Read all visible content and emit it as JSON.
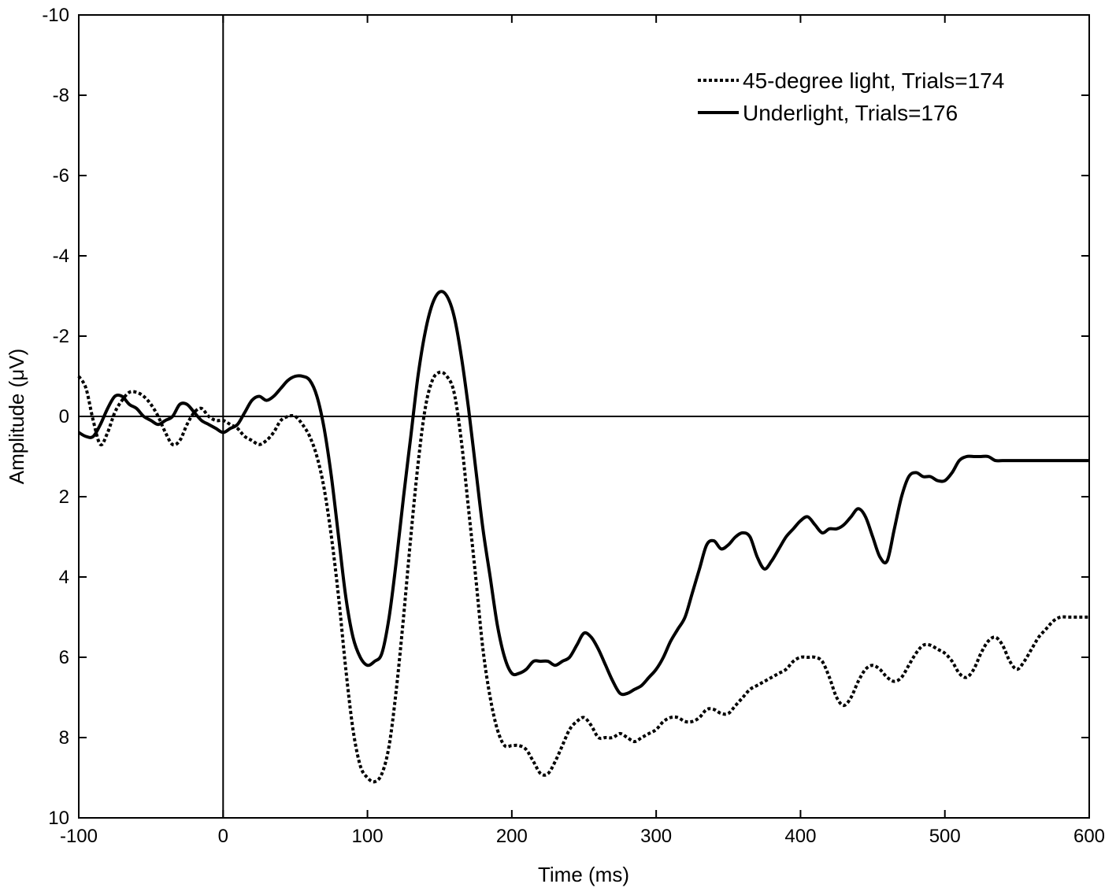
{
  "chart_data": {
    "type": "line",
    "title": "",
    "xlabel": "Time (ms)",
    "ylabel": "Amplitude (μV)",
    "xlim": [
      -100,
      600
    ],
    "ylim": [
      -10,
      10
    ],
    "y_inverted": true,
    "xticks": [
      -100,
      0,
      100,
      200,
      300,
      400,
      500,
      600
    ],
    "yticks": [
      -10,
      -8,
      -6,
      -4,
      -2,
      0,
      2,
      4,
      6,
      8,
      10
    ],
    "grid": false,
    "zero_lines": true,
    "legend_position": "top-right",
    "series": [
      {
        "name": "45-degree light, Trials=174",
        "style": "dotted",
        "color": "#000000",
        "points": [
          [
            -100,
            -1.0
          ],
          [
            -95,
            -0.7
          ],
          [
            -90,
            0.1
          ],
          [
            -85,
            0.7
          ],
          [
            -80,
            0.4
          ],
          [
            -75,
            -0.1
          ],
          [
            -70,
            -0.4
          ],
          [
            -65,
            -0.6
          ],
          [
            -60,
            -0.6
          ],
          [
            -55,
            -0.5
          ],
          [
            -50,
            -0.3
          ],
          [
            -45,
            0.0
          ],
          [
            -40,
            0.4
          ],
          [
            -35,
            0.7
          ],
          [
            -30,
            0.6
          ],
          [
            -25,
            0.2
          ],
          [
            -20,
            -0.1
          ],
          [
            -15,
            -0.2
          ],
          [
            -10,
            0.0
          ],
          [
            -5,
            0.1
          ],
          [
            0,
            0.1
          ],
          [
            5,
            0.2
          ],
          [
            10,
            0.3
          ],
          [
            15,
            0.5
          ],
          [
            20,
            0.6
          ],
          [
            25,
            0.7
          ],
          [
            30,
            0.6
          ],
          [
            35,
            0.4
          ],
          [
            40,
            0.1
          ],
          [
            45,
            0.0
          ],
          [
            50,
            0.0
          ],
          [
            55,
            0.2
          ],
          [
            60,
            0.5
          ],
          [
            65,
            1.0
          ],
          [
            70,
            1.8
          ],
          [
            75,
            3.0
          ],
          [
            80,
            4.5
          ],
          [
            85,
            6.3
          ],
          [
            90,
            7.8
          ],
          [
            95,
            8.7
          ],
          [
            100,
            9.0
          ],
          [
            105,
            9.1
          ],
          [
            110,
            8.9
          ],
          [
            115,
            8.2
          ],
          [
            120,
            6.8
          ],
          [
            125,
            5.0
          ],
          [
            130,
            3.0
          ],
          [
            135,
            1.2
          ],
          [
            140,
            -0.2
          ],
          [
            145,
            -0.9
          ],
          [
            150,
            -1.1
          ],
          [
            155,
            -1.0
          ],
          [
            160,
            -0.6
          ],
          [
            165,
            0.6
          ],
          [
            170,
            2.3
          ],
          [
            175,
            4.0
          ],
          [
            180,
            5.8
          ],
          [
            185,
            7.0
          ],
          [
            190,
            7.8
          ],
          [
            195,
            8.2
          ],
          [
            200,
            8.2
          ],
          [
            205,
            8.2
          ],
          [
            210,
            8.3
          ],
          [
            215,
            8.6
          ],
          [
            220,
            8.9
          ],
          [
            225,
            8.9
          ],
          [
            230,
            8.6
          ],
          [
            235,
            8.2
          ],
          [
            240,
            7.8
          ],
          [
            245,
            7.6
          ],
          [
            250,
            7.5
          ],
          [
            255,
            7.7
          ],
          [
            260,
            8.0
          ],
          [
            265,
            8.0
          ],
          [
            270,
            8.0
          ],
          [
            275,
            7.9
          ],
          [
            280,
            8.0
          ],
          [
            285,
            8.1
          ],
          [
            290,
            8.0
          ],
          [
            295,
            7.9
          ],
          [
            300,
            7.8
          ],
          [
            305,
            7.6
          ],
          [
            310,
            7.5
          ],
          [
            315,
            7.5
          ],
          [
            320,
            7.6
          ],
          [
            325,
            7.6
          ],
          [
            330,
            7.5
          ],
          [
            335,
            7.3
          ],
          [
            340,
            7.3
          ],
          [
            345,
            7.4
          ],
          [
            350,
            7.4
          ],
          [
            355,
            7.2
          ],
          [
            360,
            7.0
          ],
          [
            365,
            6.8
          ],
          [
            370,
            6.7
          ],
          [
            375,
            6.6
          ],
          [
            380,
            6.5
          ],
          [
            385,
            6.4
          ],
          [
            390,
            6.3
          ],
          [
            395,
            6.1
          ],
          [
            400,
            6.0
          ],
          [
            405,
            6.0
          ],
          [
            410,
            6.0
          ],
          [
            415,
            6.1
          ],
          [
            420,
            6.5
          ],
          [
            425,
            7.0
          ],
          [
            430,
            7.2
          ],
          [
            435,
            7.0
          ],
          [
            440,
            6.6
          ],
          [
            445,
            6.3
          ],
          [
            450,
            6.2
          ],
          [
            455,
            6.3
          ],
          [
            460,
            6.5
          ],
          [
            465,
            6.6
          ],
          [
            470,
            6.5
          ],
          [
            475,
            6.2
          ],
          [
            480,
            5.9
          ],
          [
            485,
            5.7
          ],
          [
            490,
            5.7
          ],
          [
            495,
            5.8
          ],
          [
            500,
            5.9
          ],
          [
            505,
            6.1
          ],
          [
            510,
            6.4
          ],
          [
            515,
            6.5
          ],
          [
            520,
            6.3
          ],
          [
            525,
            5.9
          ],
          [
            530,
            5.6
          ],
          [
            535,
            5.5
          ],
          [
            540,
            5.7
          ],
          [
            545,
            6.1
          ],
          [
            550,
            6.3
          ],
          [
            555,
            6.1
          ],
          [
            560,
            5.8
          ],
          [
            565,
            5.5
          ],
          [
            570,
            5.3
          ],
          [
            575,
            5.1
          ],
          [
            580,
            5.0
          ],
          [
            585,
            5.0
          ],
          [
            590,
            5.0
          ],
          [
            595,
            5.0
          ],
          [
            600,
            5.0
          ]
        ]
      },
      {
        "name": "Underlight, Trials=176",
        "style": "solid",
        "color": "#000000",
        "points": [
          [
            -100,
            0.4
          ],
          [
            -95,
            0.5
          ],
          [
            -90,
            0.5
          ],
          [
            -85,
            0.2
          ],
          [
            -80,
            -0.2
          ],
          [
            -75,
            -0.5
          ],
          [
            -70,
            -0.5
          ],
          [
            -65,
            -0.3
          ],
          [
            -60,
            -0.2
          ],
          [
            -55,
            0.0
          ],
          [
            -50,
            0.1
          ],
          [
            -45,
            0.2
          ],
          [
            -40,
            0.1
          ],
          [
            -35,
            0.0
          ],
          [
            -30,
            -0.3
          ],
          [
            -25,
            -0.3
          ],
          [
            -20,
            -0.1
          ],
          [
            -15,
            0.1
          ],
          [
            -10,
            0.2
          ],
          [
            -5,
            0.3
          ],
          [
            0,
            0.4
          ],
          [
            5,
            0.3
          ],
          [
            10,
            0.2
          ],
          [
            15,
            -0.1
          ],
          [
            20,
            -0.4
          ],
          [
            25,
            -0.5
          ],
          [
            30,
            -0.4
          ],
          [
            35,
            -0.5
          ],
          [
            40,
            -0.7
          ],
          [
            45,
            -0.9
          ],
          [
            50,
            -1.0
          ],
          [
            55,
            -1.0
          ],
          [
            60,
            -0.9
          ],
          [
            65,
            -0.5
          ],
          [
            70,
            0.3
          ],
          [
            75,
            1.5
          ],
          [
            80,
            3.0
          ],
          [
            85,
            4.5
          ],
          [
            90,
            5.5
          ],
          [
            95,
            6.0
          ],
          [
            100,
            6.2
          ],
          [
            105,
            6.1
          ],
          [
            110,
            5.9
          ],
          [
            115,
            5.0
          ],
          [
            120,
            3.6
          ],
          [
            125,
            2.0
          ],
          [
            130,
            0.5
          ],
          [
            135,
            -1.0
          ],
          [
            140,
            -2.1
          ],
          [
            145,
            -2.8
          ],
          [
            150,
            -3.1
          ],
          [
            155,
            -3.0
          ],
          [
            160,
            -2.5
          ],
          [
            165,
            -1.5
          ],
          [
            170,
            -0.2
          ],
          [
            175,
            1.3
          ],
          [
            180,
            2.8
          ],
          [
            185,
            4.0
          ],
          [
            190,
            5.2
          ],
          [
            195,
            6.0
          ],
          [
            200,
            6.4
          ],
          [
            205,
            6.4
          ],
          [
            210,
            6.3
          ],
          [
            215,
            6.1
          ],
          [
            220,
            6.1
          ],
          [
            225,
            6.1
          ],
          [
            230,
            6.2
          ],
          [
            235,
            6.1
          ],
          [
            240,
            6.0
          ],
          [
            245,
            5.7
          ],
          [
            250,
            5.4
          ],
          [
            255,
            5.5
          ],
          [
            260,
            5.8
          ],
          [
            265,
            6.2
          ],
          [
            270,
            6.6
          ],
          [
            275,
            6.9
          ],
          [
            280,
            6.9
          ],
          [
            285,
            6.8
          ],
          [
            290,
            6.7
          ],
          [
            295,
            6.5
          ],
          [
            300,
            6.3
          ],
          [
            305,
            6.0
          ],
          [
            310,
            5.6
          ],
          [
            315,
            5.3
          ],
          [
            320,
            5.0
          ],
          [
            325,
            4.4
          ],
          [
            330,
            3.8
          ],
          [
            335,
            3.2
          ],
          [
            340,
            3.1
          ],
          [
            345,
            3.3
          ],
          [
            350,
            3.2
          ],
          [
            355,
            3.0
          ],
          [
            360,
            2.9
          ],
          [
            365,
            3.0
          ],
          [
            370,
            3.5
          ],
          [
            375,
            3.8
          ],
          [
            380,
            3.6
          ],
          [
            385,
            3.3
          ],
          [
            390,
            3.0
          ],
          [
            395,
            2.8
          ],
          [
            400,
            2.6
          ],
          [
            405,
            2.5
          ],
          [
            410,
            2.7
          ],
          [
            415,
            2.9
          ],
          [
            420,
            2.8
          ],
          [
            425,
            2.8
          ],
          [
            430,
            2.7
          ],
          [
            435,
            2.5
          ],
          [
            440,
            2.3
          ],
          [
            445,
            2.5
          ],
          [
            450,
            3.0
          ],
          [
            455,
            3.5
          ],
          [
            460,
            3.6
          ],
          [
            465,
            2.8
          ],
          [
            470,
            2.0
          ],
          [
            475,
            1.5
          ],
          [
            480,
            1.4
          ],
          [
            485,
            1.5
          ],
          [
            490,
            1.5
          ],
          [
            495,
            1.6
          ],
          [
            500,
            1.6
          ],
          [
            505,
            1.4
          ],
          [
            510,
            1.1
          ],
          [
            515,
            1.0
          ],
          [
            520,
            1.0
          ],
          [
            525,
            1.0
          ],
          [
            530,
            1.0
          ],
          [
            535,
            1.1
          ],
          [
            540,
            1.1
          ],
          [
            545,
            1.1
          ],
          [
            550,
            1.1
          ],
          [
            555,
            1.1
          ],
          [
            560,
            1.1
          ],
          [
            565,
            1.1
          ],
          [
            570,
            1.1
          ],
          [
            575,
            1.1
          ],
          [
            580,
            1.1
          ],
          [
            585,
            1.1
          ],
          [
            590,
            1.1
          ],
          [
            595,
            1.1
          ],
          [
            600,
            1.1
          ]
        ]
      }
    ]
  }
}
